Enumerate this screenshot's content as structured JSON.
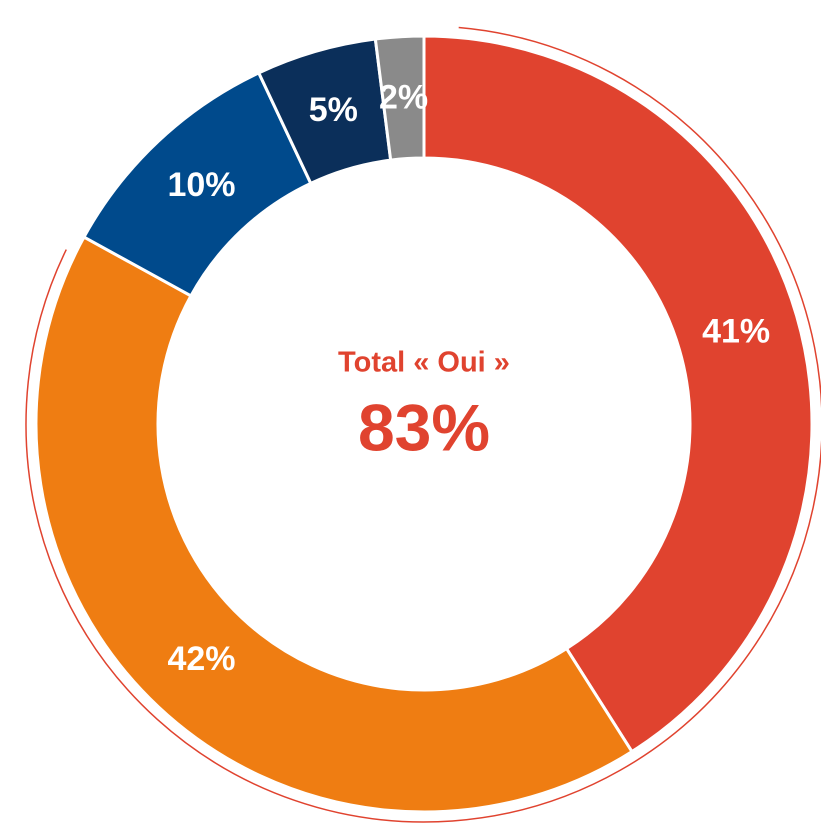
{
  "chart_data": {
    "type": "donut",
    "annotations": [
      "Total « Oui »",
      "83%"
    ],
    "categories": [
      null,
      null,
      null,
      null,
      null
    ],
    "values": [
      41,
      42,
      10,
      5,
      2
    ],
    "value_labels": [
      "41%",
      "42%",
      "10%",
      "5%",
      "2%"
    ],
    "colors": [
      "#e0432f",
      "#ef7d12",
      "#004a8c",
      "#0b2f5a",
      "#8a8a8a"
    ]
  }
}
